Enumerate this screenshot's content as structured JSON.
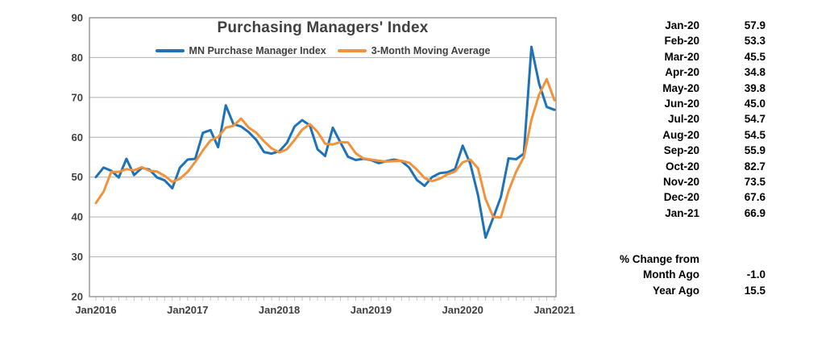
{
  "chart": {
    "title": "Purchasing Managers' Index",
    "legend": [
      {
        "label": "MN Purchase Manager Index",
        "color": "#1F72B8"
      },
      {
        "label": "3-Month Moving Average",
        "color": "#F2933B"
      }
    ],
    "y_axis": {
      "tick_labels": [
        "90",
        "80",
        "70",
        "60",
        "50",
        "40",
        "30",
        "20"
      ]
    },
    "x_axis": {
      "tick_labels": [
        "Jan2016",
        "Jan2017",
        "Jan2018",
        "Jan2019",
        "Jan2020",
        "Jan2021"
      ]
    }
  },
  "chart_data": {
    "type": "line",
    "x_start": "2016-01",
    "frequency": "monthly",
    "xlabel": "",
    "ylabel": "",
    "ylim": [
      20,
      90
    ],
    "grid": true,
    "legend_position": "top",
    "x_tick_month_indices": [
      0,
      12,
      24,
      36,
      48,
      60
    ],
    "series": [
      {
        "name": "MN Purchase Manager Index",
        "color": "#1F72B8",
        "values": [
          50.0,
          52.4,
          51.6,
          49.9,
          54.6,
          50.5,
          52.3,
          51.9,
          49.9,
          49.2,
          47.2,
          52.4,
          54.4,
          54.6,
          61.1,
          61.8,
          57.5,
          68.0,
          63.3,
          62.7,
          61.3,
          59.3,
          56.3,
          55.9,
          56.5,
          58.6,
          62.7,
          64.3,
          63.0,
          57.0,
          55.3,
          62.4,
          58.7,
          55.1,
          54.3,
          54.6,
          54.3,
          53.5,
          54.0,
          54.4,
          54.0,
          52.4,
          49.3,
          47.8,
          50.0,
          51.0,
          51.2,
          52.0,
          57.9,
          53.3,
          45.5,
          34.8,
          39.8,
          45.0,
          54.7,
          54.5,
          55.9,
          82.7,
          73.5,
          67.6,
          66.9
        ]
      },
      {
        "name": "3-Month Moving Average",
        "color": "#F2933B",
        "values": [
          43.5,
          46.3,
          51.3,
          51.3,
          52.0,
          51.7,
          52.5,
          51.6,
          51.4,
          50.3,
          48.8,
          49.6,
          51.3,
          53.8,
          56.7,
          59.2,
          60.1,
          62.4,
          62.9,
          64.7,
          62.4,
          61.1,
          59.0,
          57.2,
          56.2,
          57.0,
          59.3,
          61.9,
          63.3,
          61.4,
          58.4,
          58.2,
          58.8,
          58.7,
          56.0,
          54.7,
          54.4,
          54.1,
          53.9,
          54.0,
          54.1,
          53.6,
          51.9,
          49.8,
          49.0,
          49.6,
          50.7,
          51.4,
          53.7,
          54.4,
          52.2,
          44.5,
          40.0,
          39.9,
          46.5,
          51.4,
          55.0,
          64.4,
          70.7,
          74.6,
          69.3
        ]
      }
    ]
  },
  "table": {
    "rows": [
      {
        "month": "Jan-20",
        "value": "57.9"
      },
      {
        "month": "Feb-20",
        "value": "53.3"
      },
      {
        "month": "Mar-20",
        "value": "45.5"
      },
      {
        "month": "Apr-20",
        "value": "34.8"
      },
      {
        "month": "May-20",
        "value": "39.8"
      },
      {
        "month": "Jun-20",
        "value": "45.0"
      },
      {
        "month": "Jul-20",
        "value": "54.7"
      },
      {
        "month": "Aug-20",
        "value": "54.5"
      },
      {
        "month": "Sep-20",
        "value": "55.9"
      },
      {
        "month": "Oct-20",
        "value": "82.7"
      },
      {
        "month": "Nov-20",
        "value": "73.5"
      },
      {
        "month": "Dec-20",
        "value": "67.6"
      },
      {
        "month": "Jan-21",
        "value": "66.9"
      }
    ],
    "change_block": {
      "header": "% Change from",
      "rows": [
        {
          "label": "Month Ago",
          "value": "-1.0"
        },
        {
          "label": "Year Ago",
          "value": "15.5"
        }
      ]
    }
  },
  "colors": {
    "axis_text": "#404040",
    "grid": "#AFAFAF",
    "border": "#808080",
    "minor_tick": "#C3C3C3",
    "background": "#FFFFFF"
  }
}
